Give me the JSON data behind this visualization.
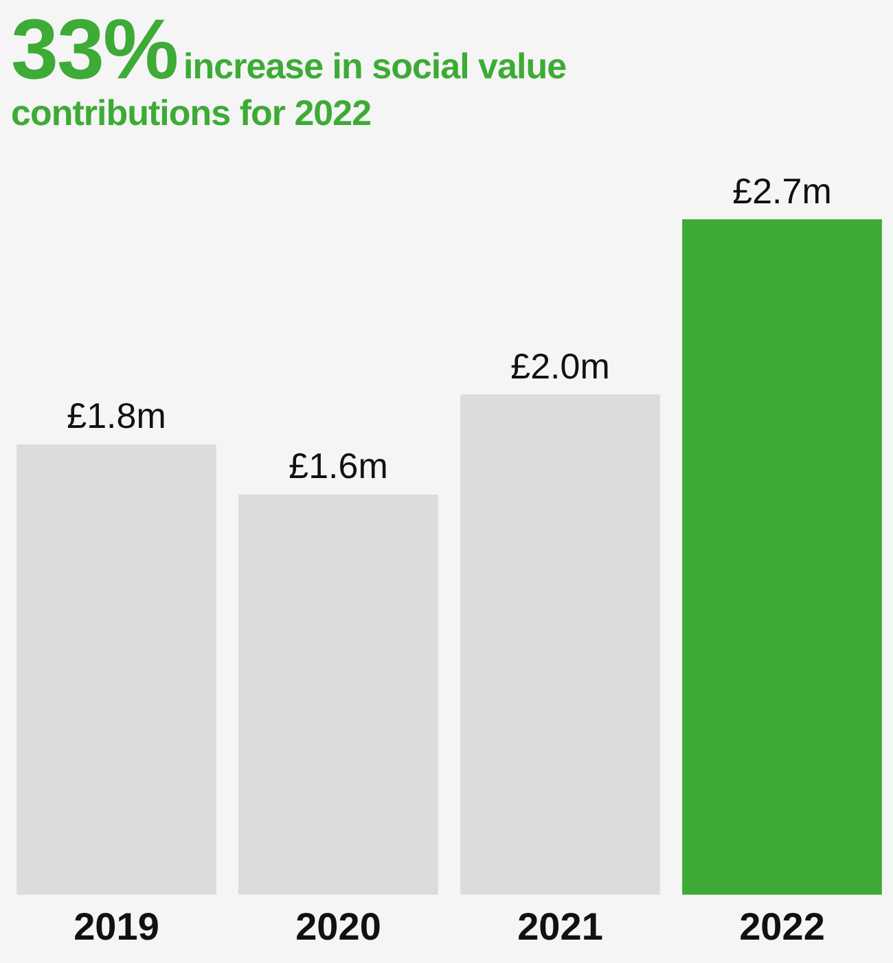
{
  "chart_data": {
    "type": "bar",
    "title": "33%",
    "subtitle": "increase in social value contributions for 2022",
    "categories": [
      "2019",
      "2020",
      "2021",
      "2022"
    ],
    "values": [
      1.8,
      1.6,
      2.0,
      2.7
    ],
    "value_labels": [
      "£1.8m",
      "£1.6m",
      "£2.0m",
      "£2.7m"
    ],
    "colors": [
      "#dcdcdc",
      "#dcdcdc",
      "#dcdcdc",
      "#3dab35"
    ],
    "grid": false,
    "legend": false
  }
}
